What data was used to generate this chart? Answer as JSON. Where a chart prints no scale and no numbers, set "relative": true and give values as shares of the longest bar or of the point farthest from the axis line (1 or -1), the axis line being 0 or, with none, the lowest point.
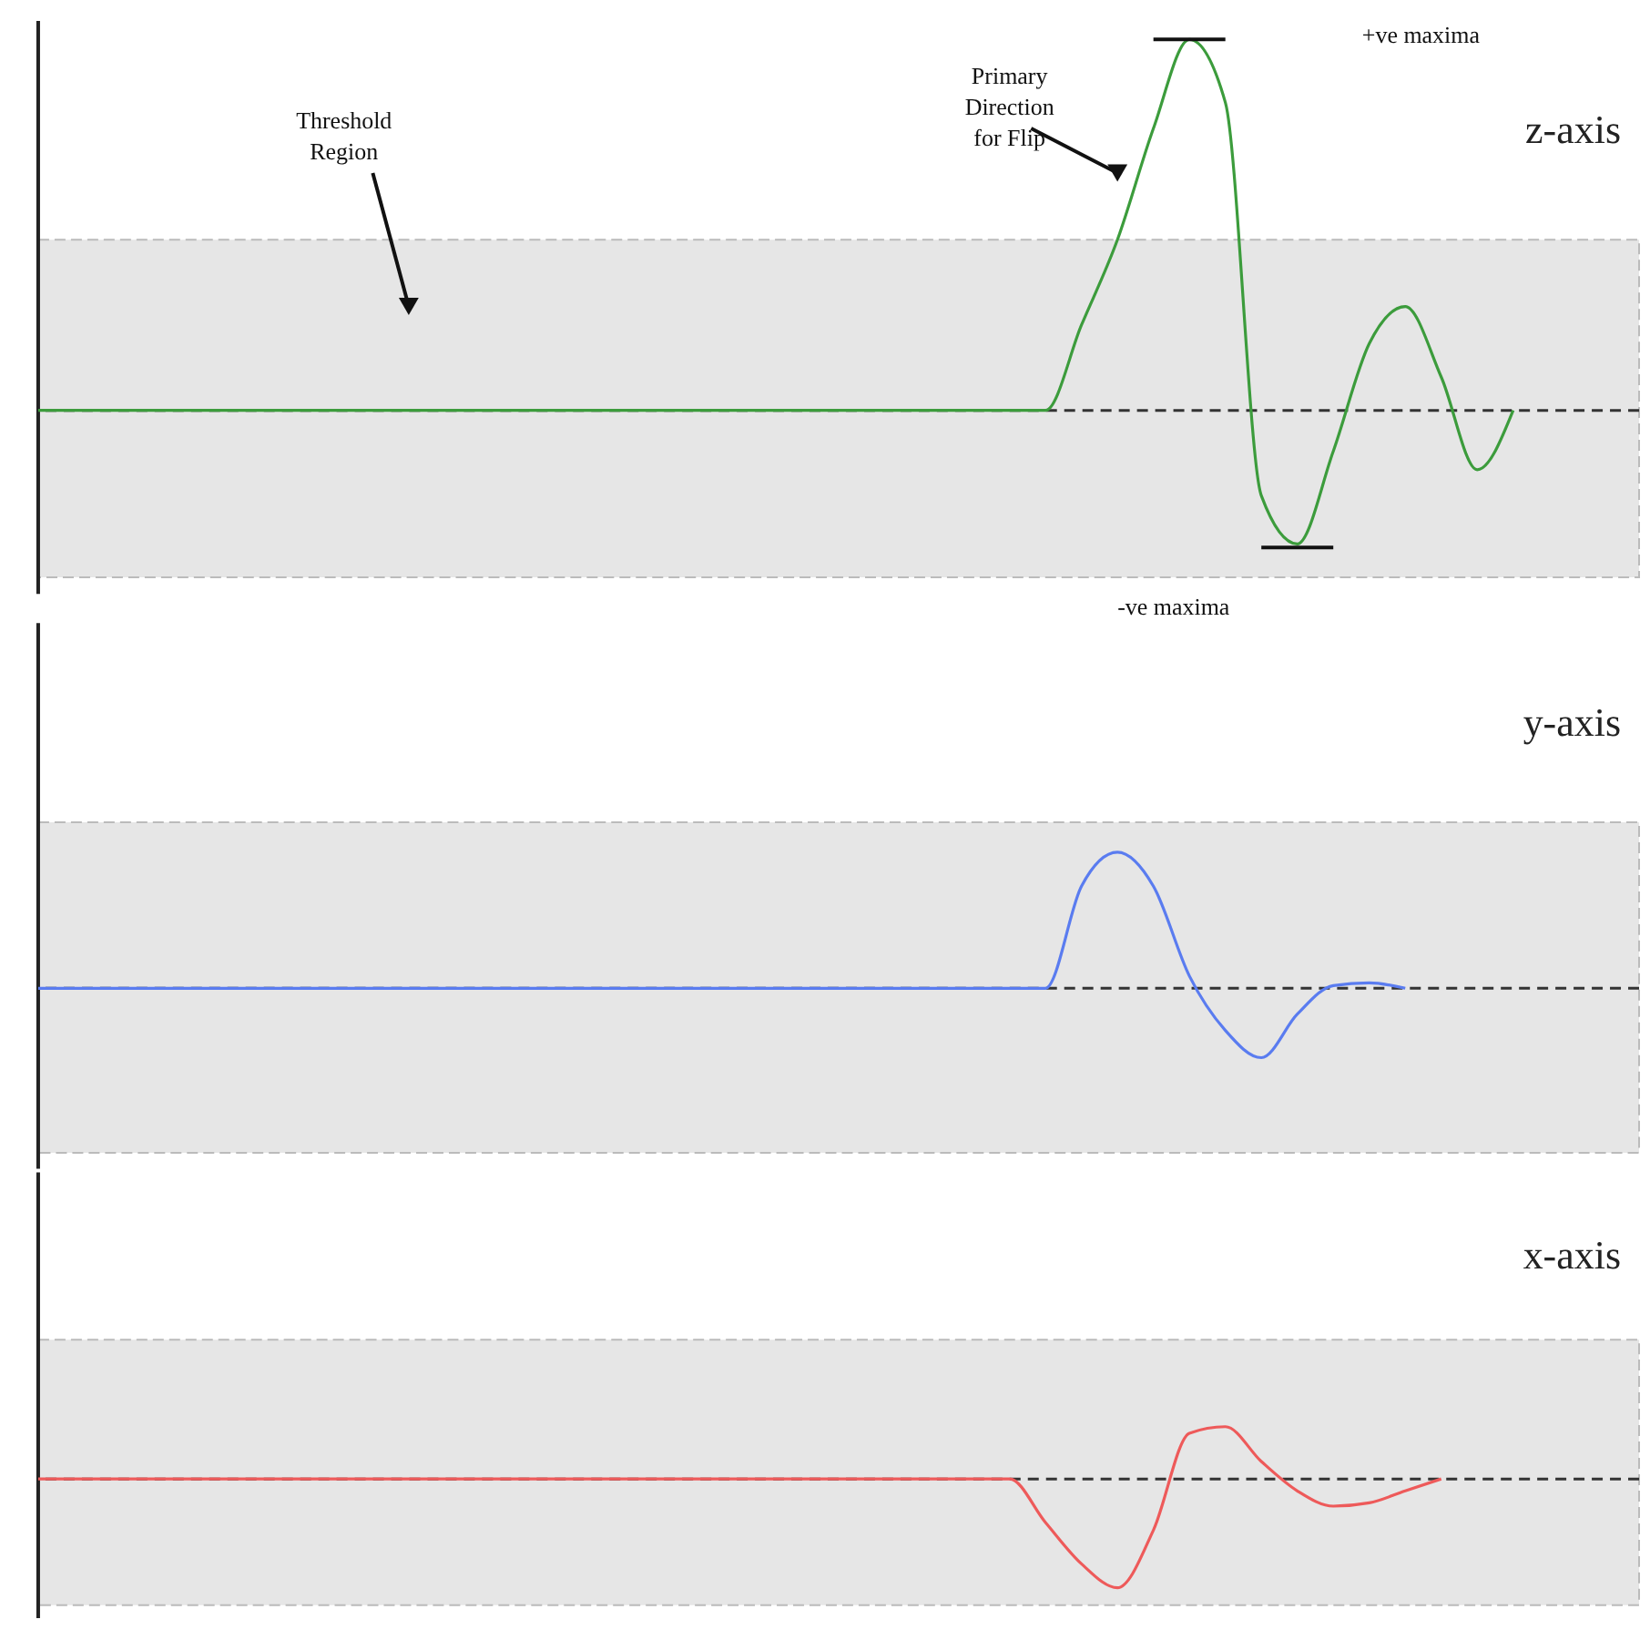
{
  "chart_data": [
    {
      "type": "line",
      "title": "z-axis",
      "relative": true,
      "marker": "none",
      "line_style": "solid",
      "categories": [
        null,
        null,
        null,
        null,
        null,
        null,
        null,
        null,
        null,
        null,
        null,
        null,
        null,
        null,
        null,
        null,
        null,
        null,
        null,
        null,
        null,
        null,
        null,
        null,
        null,
        null,
        null,
        null,
        null,
        null,
        null,
        null,
        null,
        null,
        null,
        null,
        null,
        null,
        null,
        null,
        null,
        null,
        null,
        null,
        null
      ],
      "series": [
        {
          "color": "#3c9c3c",
          "values": [
            0,
            0,
            0,
            0,
            0,
            0,
            0,
            0,
            0,
            0,
            0,
            0,
            0,
            0,
            0,
            0,
            0,
            0,
            0,
            0,
            0,
            0,
            0,
            0,
            0,
            0,
            0,
            0,
            0,
            0.23,
            0.46,
            0.76,
            1.0,
            0.83,
            -0.23,
            -0.36,
            -0.11,
            0.18,
            0.28,
            0.09,
            -0.16,
            0,
            null,
            null,
            null
          ]
        }
      ],
      "bands": [
        {
          "axis": "y",
          "from": -0.45,
          "to": 0.46,
          "color": "#e6e6e6"
        }
      ],
      "ref_lines": [
        {
          "axis": "y",
          "value": 0,
          "line_style": "dashed",
          "color": "#333333"
        }
      ],
      "annotations": [
        "Threshold Region",
        "Primary Direction for Flip",
        "+ve maxima",
        "-ve maxima"
      ]
    },
    {
      "type": "line",
      "title": "y-axis",
      "relative": true,
      "marker": "none",
      "line_style": "solid",
      "categories": [
        null,
        null,
        null,
        null,
        null,
        null,
        null,
        null,
        null,
        null,
        null,
        null,
        null,
        null,
        null,
        null,
        null,
        null,
        null,
        null,
        null,
        null,
        null,
        null,
        null,
        null,
        null,
        null,
        null,
        null,
        null,
        null,
        null,
        null,
        null,
        null,
        null,
        null,
        null,
        null,
        null,
        null,
        null,
        null,
        null
      ],
      "series": [
        {
          "color": "#5a7cf0",
          "values": [
            0,
            0,
            0,
            0,
            0,
            0,
            0,
            0,
            0,
            0,
            0,
            0,
            0,
            0,
            0,
            0,
            0,
            0,
            0,
            0,
            0,
            0,
            0,
            0,
            0,
            0,
            0,
            0,
            0,
            0.75,
            1.0,
            0.75,
            0.09,
            -0.31,
            -0.51,
            -0.19,
            0.02,
            0.04,
            0,
            null,
            null,
            null,
            null,
            null,
            null
          ]
        }
      ],
      "bands": [
        {
          "axis": "y",
          "from": -1.21,
          "to": 1.22,
          "color": "#e6e6e6"
        }
      ],
      "ref_lines": [
        {
          "axis": "y",
          "value": 0,
          "line_style": "dashed",
          "color": "#333333"
        }
      ]
    },
    {
      "type": "line",
      "title": "x-axis",
      "relative": true,
      "marker": "none",
      "line_style": "solid",
      "categories": [
        null,
        null,
        null,
        null,
        null,
        null,
        null,
        null,
        null,
        null,
        null,
        null,
        null,
        null,
        null,
        null,
        null,
        null,
        null,
        null,
        null,
        null,
        null,
        null,
        null,
        null,
        null,
        null,
        null,
        null,
        null,
        null,
        null,
        null,
        null,
        null,
        null,
        null,
        null,
        null,
        null,
        null,
        null,
        null,
        null
      ],
      "series": [
        {
          "color": "#ee5a5a",
          "values": [
            0,
            0,
            0,
            0,
            0,
            0,
            0,
            0,
            0,
            0,
            0,
            0,
            0,
            0,
            0,
            0,
            0,
            0,
            0,
            0,
            0,
            0,
            0,
            0,
            0,
            0,
            0,
            0,
            -0.4,
            -0.78,
            -1.0,
            -0.47,
            0.42,
            0.48,
            0.16,
            -0.11,
            -0.25,
            -0.22,
            -0.11,
            0,
            null,
            null,
            null,
            null,
            null
          ]
        }
      ],
      "bands": [
        {
          "axis": "y",
          "from": -1.16,
          "to": 1.28,
          "color": "#e6e6e6"
        }
      ],
      "ref_lines": [
        {
          "axis": "y",
          "value": 0,
          "line_style": "dashed",
          "color": "#333333"
        }
      ]
    }
  ]
}
